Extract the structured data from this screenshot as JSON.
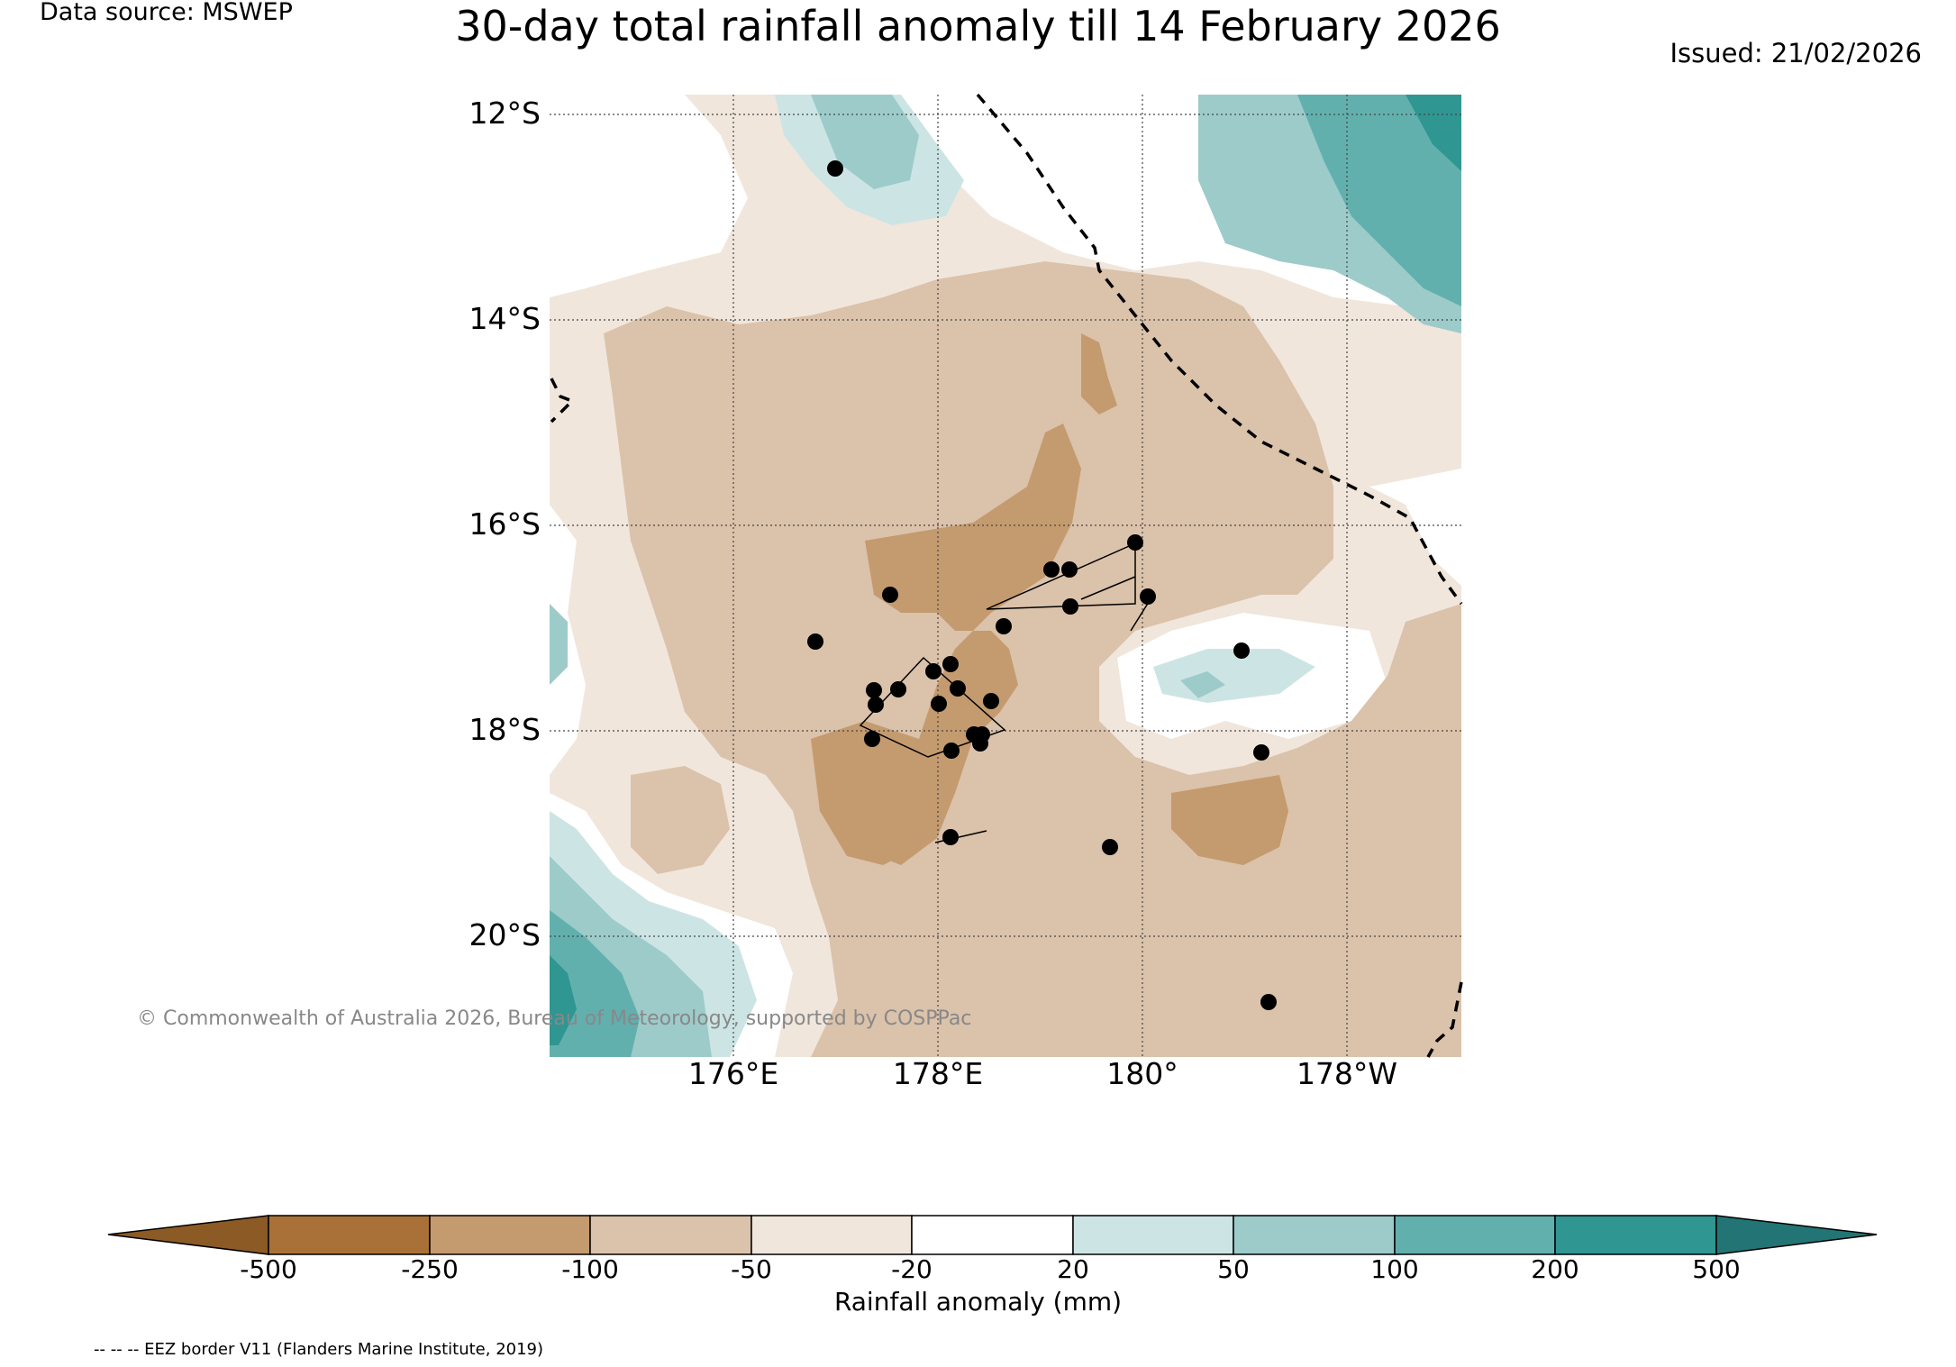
{
  "header": {
    "data_source": "Data source: MSWEP",
    "title": "30-day total rainfall anomaly till 14 February 2026",
    "issued": "Issued: 21/02/2026"
  },
  "map": {
    "lat_labels": [
      "12°S",
      "14°S",
      "16°S",
      "18°S",
      "20°S"
    ],
    "lon_labels": [
      "176°E",
      "178°E",
      "180°",
      "178°W"
    ],
    "copyright": "© Commonwealth of Australia 2026, Bureau of Meteorology, supported by COSPPac",
    "colors": {
      "brown_dark": "#8c5a25",
      "brown_250": "#a97138",
      "brown_100": "#c49a6f",
      "brown_50": "#dbc2aa",
      "brown_20": "#f0e6dc",
      "neutral": "#ffffff",
      "teal_20": "#cce5e4",
      "teal_50": "#9ccbca",
      "teal_100": "#62b0ae",
      "teal_200": "#2f9692",
      "teal_500": "#237474"
    }
  },
  "colorbar": {
    "ticks": [
      "-500",
      "-250",
      "-100",
      "-50",
      "-20",
      "20",
      "50",
      "100",
      "200",
      "500"
    ],
    "label": "Rainfall anomaly (mm)"
  },
  "footer": {
    "eez": "-- -- -- EEZ border V11 (Flanders Marine Institute, 2019)"
  }
}
